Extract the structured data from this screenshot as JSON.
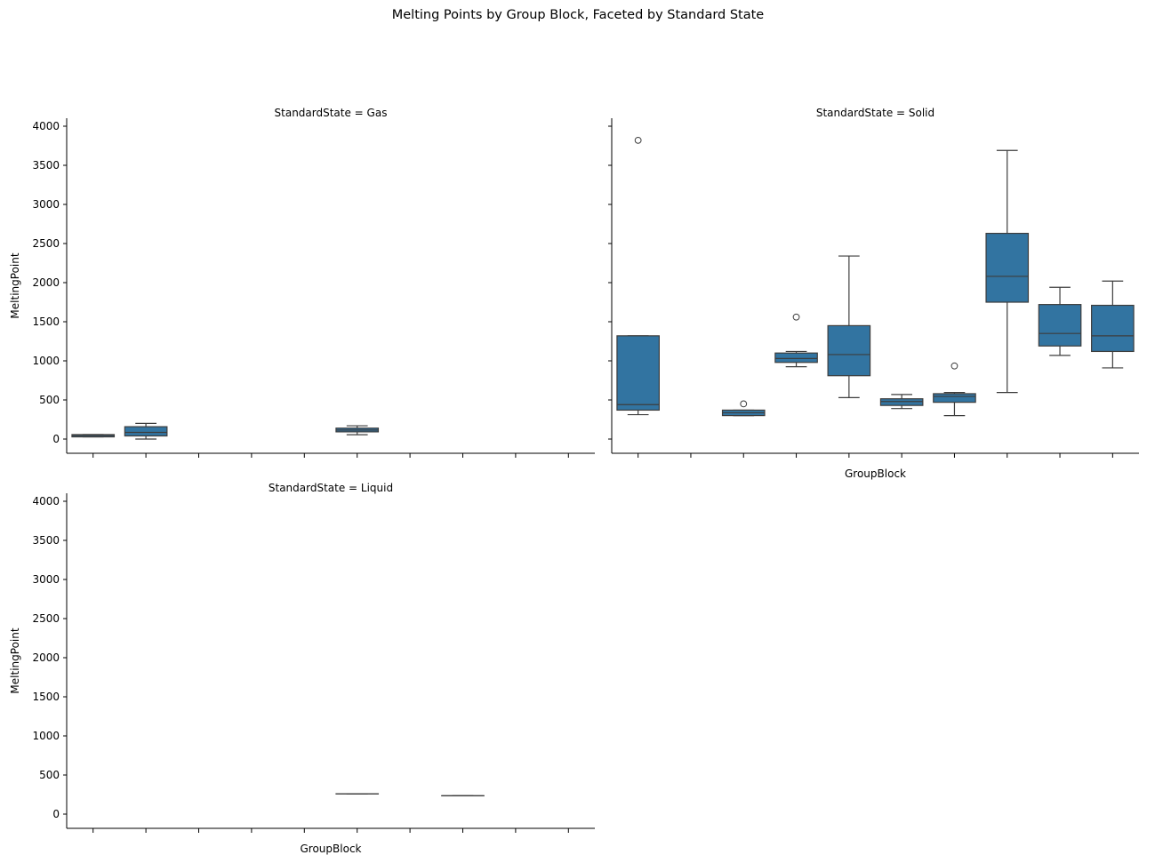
{
  "title": "Melting Points by Group Block, Faceted by Standard State",
  "chart_data": {
    "type": "box",
    "title": "Melting Points by Group Block, Faceted by Standard State",
    "ylabel": "MeltingPoint",
    "xlabel": "GroupBlock",
    "ylim": [
      -190,
      4020
    ],
    "yticks": [
      0,
      500,
      1000,
      1500,
      2000,
      2500,
      3000,
      3500,
      4000
    ],
    "n_categories": 10,
    "category_labels_visible": false,
    "box_color": "#3274a1",
    "line_color": "#3d3d3d",
    "facets": [
      {
        "title": "StandardState = Gas",
        "boxes": [
          {
            "index": 0,
            "whislo": 28,
            "q1": 28,
            "med": 45,
            "q3": 57,
            "whishi": 57,
            "fliers": []
          },
          {
            "index": 1,
            "whislo": 0,
            "q1": 40,
            "med": 85,
            "q3": 158,
            "whishi": 200,
            "fliers": []
          },
          {
            "index": 5,
            "whislo": 55,
            "q1": 92,
            "med": 115,
            "q3": 140,
            "whishi": 170,
            "fliers": []
          }
        ]
      },
      {
        "title": "StandardState = Solid",
        "boxes": [
          {
            "index": 0,
            "whislo": 312,
            "q1": 370,
            "med": 440,
            "q3": 1320,
            "whishi": 1320,
            "fliers": [
              3820
            ]
          },
          {
            "index": 2,
            "whislo": 300,
            "q1": 300,
            "med": 336,
            "q3": 370,
            "whishi": 370,
            "fliers": [
              450
            ]
          },
          {
            "index": 3,
            "whislo": 925,
            "q1": 980,
            "med": 1030,
            "q3": 1100,
            "whishi": 1120,
            "fliers": [
              1560
            ]
          },
          {
            "index": 4,
            "whislo": 530,
            "q1": 810,
            "med": 1080,
            "q3": 1450,
            "whishi": 2340,
            "fliers": []
          },
          {
            "index": 5,
            "whislo": 390,
            "q1": 430,
            "med": 480,
            "q3": 515,
            "whishi": 570,
            "fliers": []
          },
          {
            "index": 6,
            "whislo": 300,
            "q1": 470,
            "med": 545,
            "q3": 580,
            "whishi": 595,
            "fliers": [
              935
            ]
          },
          {
            "index": 7,
            "whislo": 595,
            "q1": 1750,
            "med": 2080,
            "q3": 2630,
            "whishi": 3690,
            "fliers": []
          },
          {
            "index": 8,
            "whislo": 1070,
            "q1": 1190,
            "med": 1350,
            "q3": 1720,
            "whishi": 1940,
            "fliers": []
          },
          {
            "index": 9,
            "whislo": 910,
            "q1": 1120,
            "med": 1320,
            "q3": 1710,
            "whishi": 2020,
            "fliers": []
          }
        ]
      },
      {
        "title": "StandardState = Liquid",
        "boxes": [
          {
            "index": 5,
            "whislo": 260,
            "q1": 260,
            "med": 260,
            "q3": 260,
            "whishi": 260,
            "fliers": []
          },
          {
            "index": 7,
            "whislo": 235,
            "q1": 235,
            "med": 235,
            "q3": 235,
            "whishi": 235,
            "fliers": []
          }
        ]
      }
    ]
  }
}
